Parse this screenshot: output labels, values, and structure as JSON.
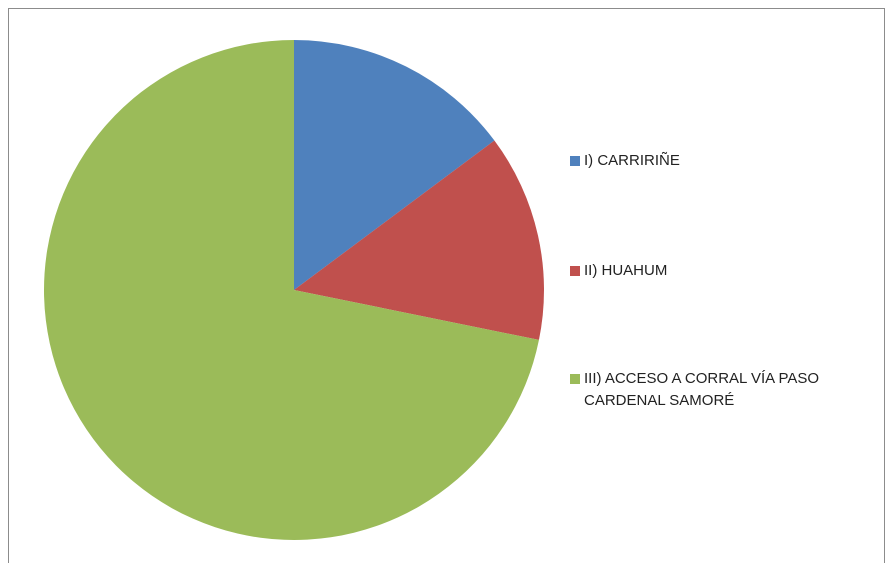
{
  "chart_data": {
    "type": "pie",
    "categories": [
      "I) CARRIRIÑE",
      "II) HUAHUM",
      "III) ACCESO A CORRAL VÍA PASO CARDENAL SAMORÉ"
    ],
    "values": [
      14.8,
      13.4,
      71.8
    ],
    "colors": [
      "#4f81bd",
      "#c0504d",
      "#9bbb59"
    ],
    "legend": "right"
  }
}
